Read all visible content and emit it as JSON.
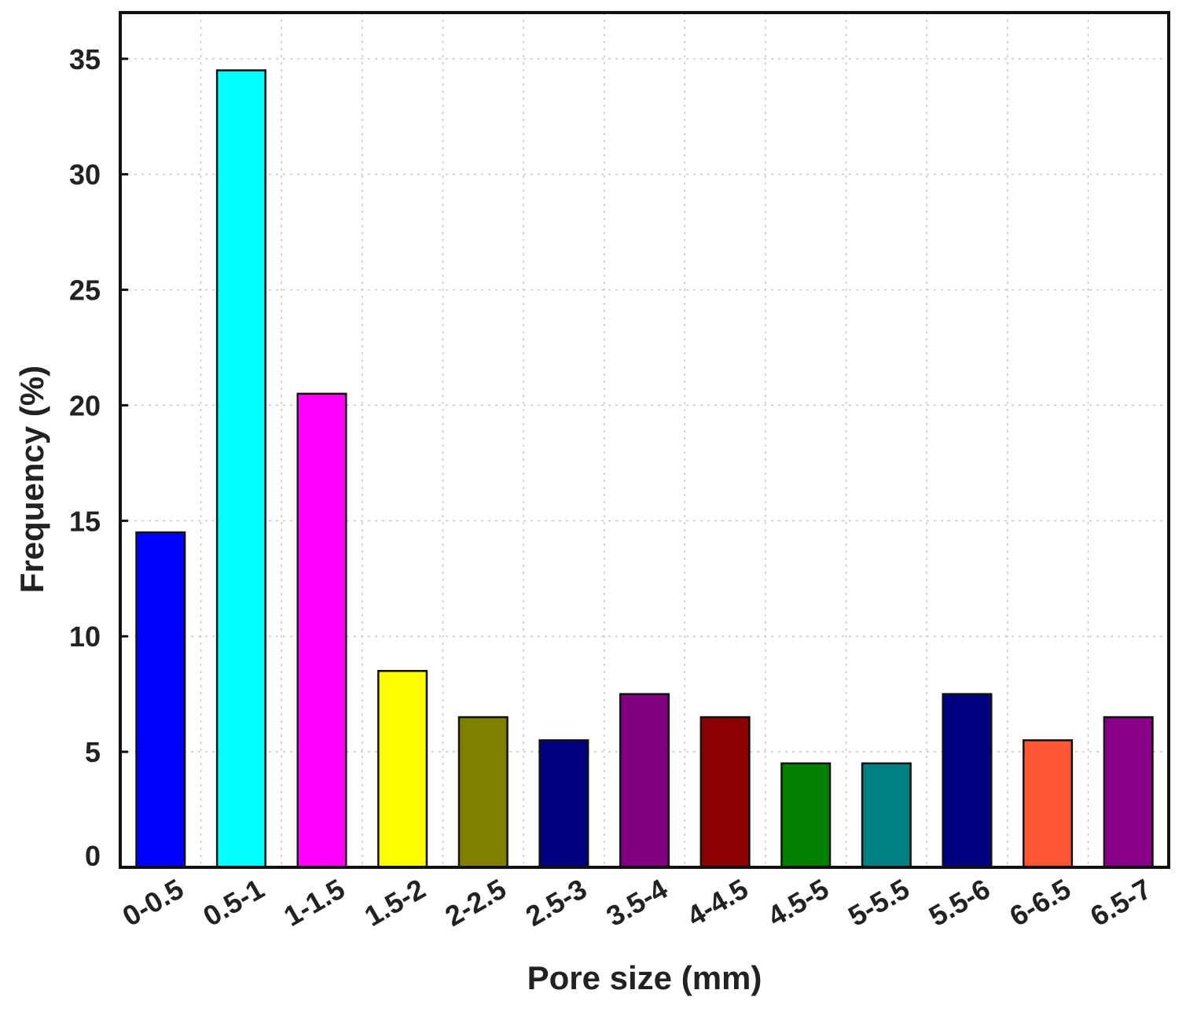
{
  "chart_data": {
    "type": "bar",
    "title": "",
    "xlabel": "Pore size (mm)",
    "ylabel": "Frequency (%)",
    "categories": [
      "0-0.5",
      "0.5-1",
      "1-1.5",
      "1.5-2",
      "2-2.5",
      "2.5-3",
      "3.5-4",
      "4-4.5",
      "4.5-5",
      "5-5.5",
      "5.5-6",
      "6-6.5",
      "6.5-7"
    ],
    "values": [
      14.5,
      34.5,
      20.5,
      8.5,
      6.5,
      5.5,
      7.5,
      6.5,
      4.5,
      4.5,
      7.5,
      5.5,
      6.5
    ],
    "colors": [
      "#0000ff",
      "#00ffff",
      "#ff00ff",
      "#ffff00",
      "#808000",
      "#000080",
      "#800080",
      "#8b0000",
      "#007f00",
      "#008080",
      "#000080",
      "#ff5533",
      "#880088"
    ],
    "ylim": [
      0,
      37
    ],
    "yticks": [
      0,
      5,
      10,
      15,
      20,
      25,
      30,
      35
    ],
    "grid": true,
    "legend": "none"
  }
}
